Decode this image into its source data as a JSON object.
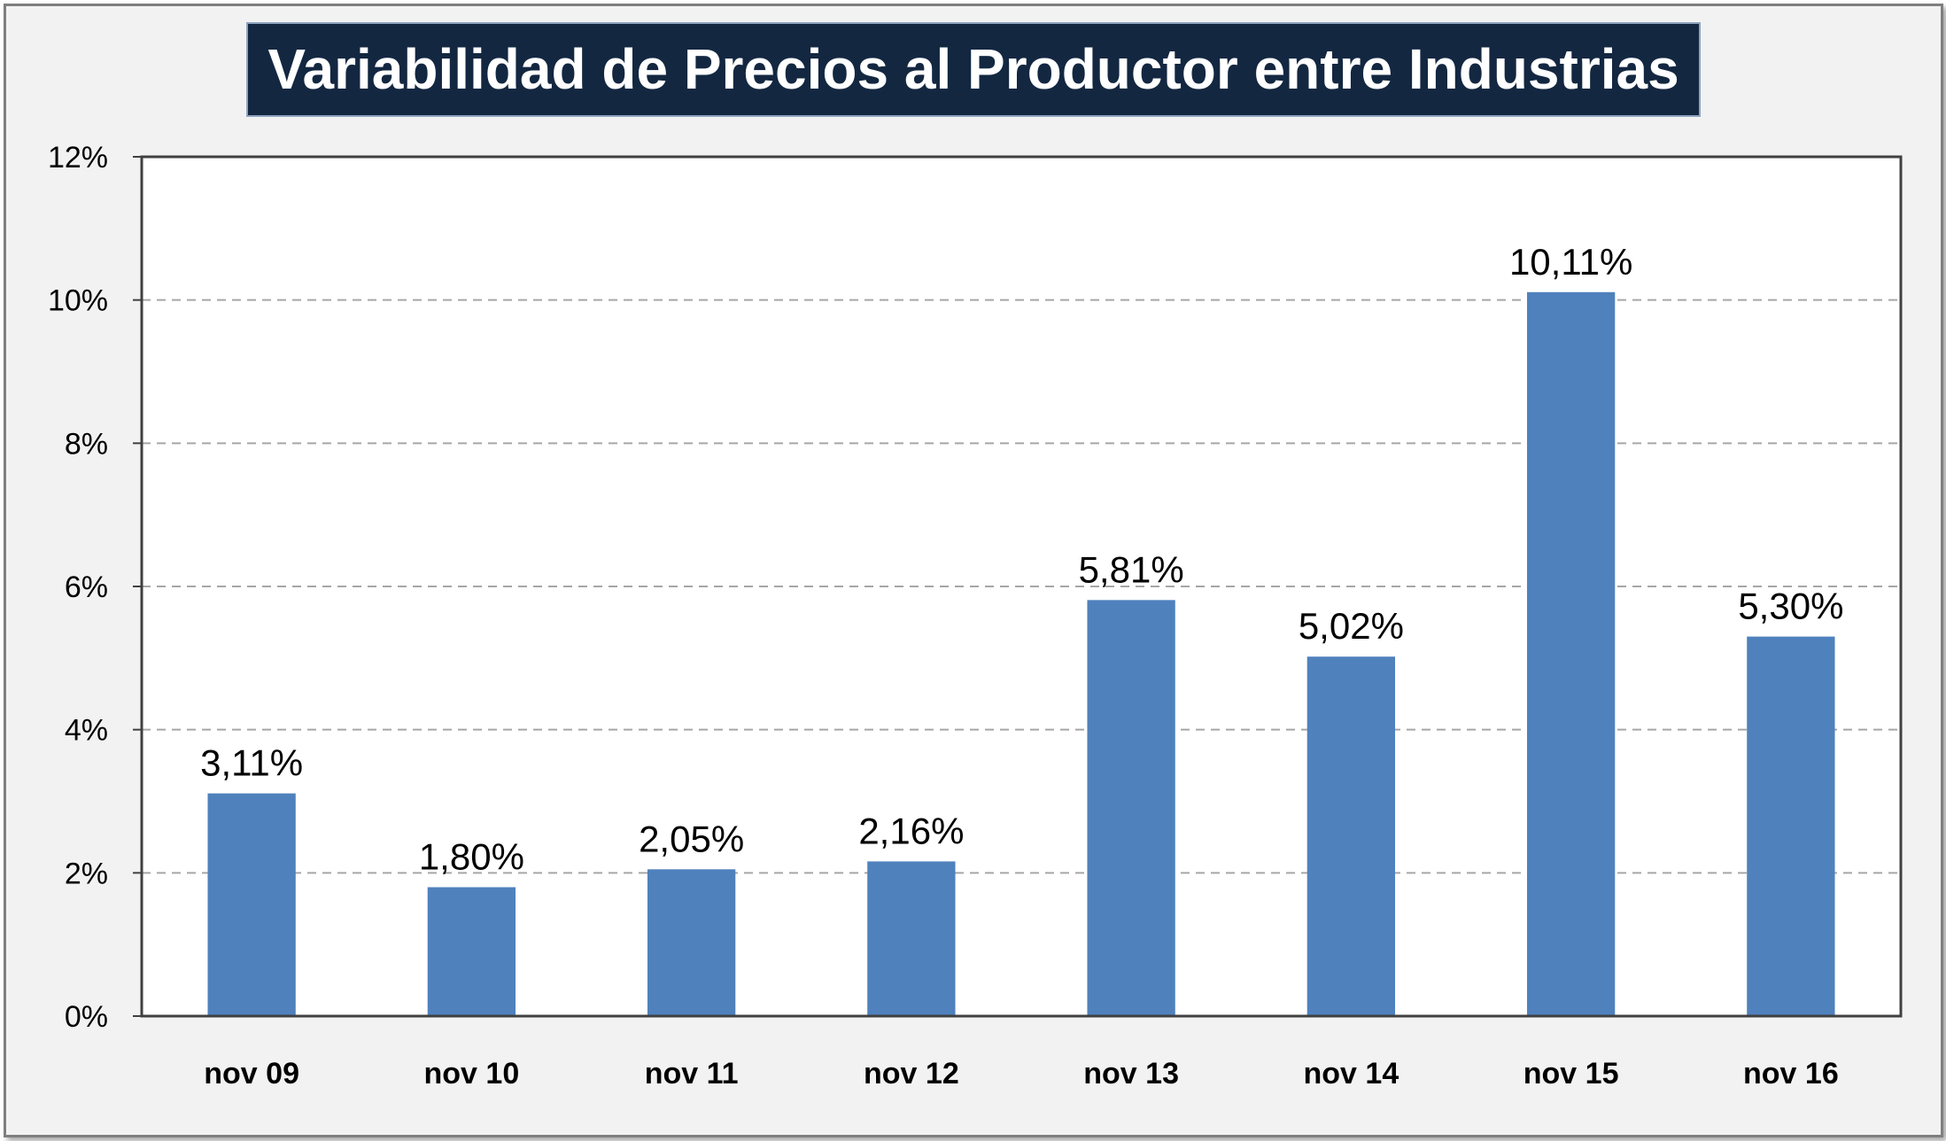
{
  "chart_data": {
    "type": "bar",
    "title": "Variabilidad de Precios al Productor entre Industrias",
    "categories": [
      "nov 09",
      "nov 10",
      "nov 11",
      "nov 12",
      "nov 13",
      "nov 14",
      "nov 15",
      "nov 16"
    ],
    "values": [
      3.11,
      1.8,
      2.05,
      2.16,
      5.81,
      5.02,
      10.11,
      5.3
    ],
    "data_labels": [
      "3,11%",
      "1,80%",
      "2,05%",
      "2,16%",
      "5,81%",
      "5,02%",
      "10,11%",
      "5,30%"
    ],
    "y_ticks": [
      "0%",
      "2%",
      "4%",
      "6%",
      "8%",
      "10%",
      "12%"
    ],
    "y_tick_values": [
      0,
      2,
      4,
      6,
      8,
      10,
      12
    ],
    "ylim": [
      0,
      12
    ],
    "xlabel": "",
    "ylabel": "",
    "grid": "horizontal dashed",
    "legend": "none",
    "colors": {
      "bar": "#4f81bd",
      "grid": "#a6a6a6",
      "plot_background": "#ffffff",
      "frame_background": "#f2f2f2",
      "title_background": "#132741",
      "title_text": "#ffffff"
    }
  }
}
